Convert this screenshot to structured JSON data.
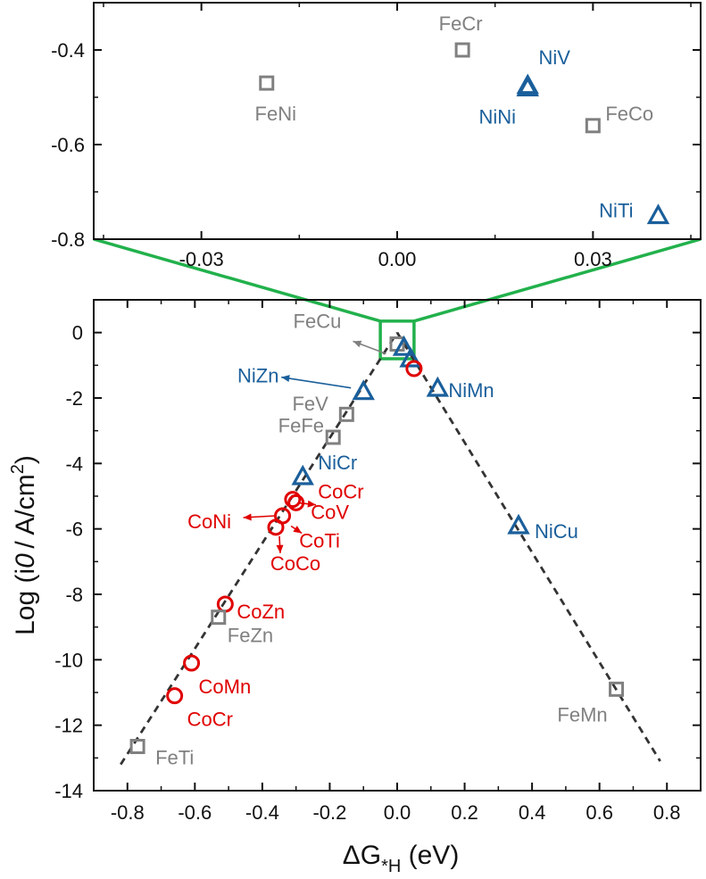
{
  "colors": {
    "fe": "#808080",
    "ni": "#1a5f9b",
    "co": "#e00000",
    "zoom": "#22b14c",
    "axis": "#111111",
    "trend": "#333333"
  },
  "chart_data": [
    {
      "type": "scatter",
      "role": "inset",
      "xlim": [
        -0.0465,
        0.0465
      ],
      "ylim": [
        -0.8,
        -0.3
      ],
      "xticks": [
        -0.03,
        0.0,
        0.03
      ],
      "xtick_labels": [
        "-0.03",
        "0.00",
        "0.03"
      ],
      "yticks": [
        -0.4,
        -0.6,
        -0.8
      ],
      "ytick_labels": [
        "-0.4",
        "-0.6",
        "-0.8"
      ],
      "points": [
        {
          "label": "FeCr",
          "x": 0.01,
          "y": -0.4,
          "series": "fe",
          "marker": "square",
          "ldx": -2,
          "ldy": -22,
          "anchor": "middle"
        },
        {
          "label": "FeNi",
          "x": -0.02,
          "y": -0.47,
          "series": "fe",
          "marker": "square",
          "ldx": 10,
          "ldy": 42,
          "anchor": "middle"
        },
        {
          "label": "NiV",
          "x": 0.02,
          "y": -0.475,
          "series": "ni",
          "marker": "triangle",
          "ldx": 30,
          "ldy": -24,
          "anchor": "middle"
        },
        {
          "label": "NiNi",
          "x": 0.02,
          "y": -0.48,
          "series": "ni",
          "marker": "triangle",
          "ldx": -34,
          "ldy": 40,
          "anchor": "middle"
        },
        {
          "label": "FeCo",
          "x": 0.03,
          "y": -0.56,
          "series": "fe",
          "marker": "square",
          "ldx": 14,
          "ldy": -6,
          "anchor": "start"
        },
        {
          "label": "NiTi",
          "x": 0.04,
          "y": -0.75,
          "series": "ni",
          "marker": "triangle",
          "ldx": -28,
          "ldy": 2,
          "anchor": "end"
        }
      ]
    },
    {
      "type": "scatter",
      "role": "main",
      "xlabel": "ΔG*H (eV)",
      "ylabel": "Log (i0 / A/cm2)",
      "xlim": [
        -0.9,
        0.9
      ],
      "ylim": [
        -14,
        1
      ],
      "xticks": [
        -0.8,
        -0.6,
        -0.4,
        -0.2,
        0.0,
        0.2,
        0.4,
        0.6,
        0.8
      ],
      "xtick_labels": [
        "-0.8",
        "-0.6",
        "-0.4",
        "-0.2",
        "0.0",
        "0.2",
        "0.4",
        "0.6",
        "0.8"
      ],
      "yticks": [
        0,
        -2,
        -4,
        -6,
        -8,
        -10,
        -12,
        -14
      ],
      "ytick_labels": [
        "0",
        "-2",
        "-4",
        "-6",
        "-8",
        "-10",
        "-12",
        "-14"
      ],
      "trend_lines": [
        {
          "x": [
            -0.82,
            0.0
          ],
          "y": [
            -13.2,
            0.0
          ]
        },
        {
          "x": [
            0.0,
            0.78
          ],
          "y": [
            0.0,
            -13.1
          ]
        }
      ],
      "zoom_box": {
        "x": [
          -0.05,
          0.05
        ],
        "y": [
          -0.8,
          0.35
        ]
      },
      "points": [
        {
          "label": "",
          "x": 0.0,
          "y": -0.35,
          "series": "fe",
          "marker": "square"
        },
        {
          "label": "",
          "x": 0.02,
          "y": -0.45,
          "series": "ni",
          "marker": "triangle"
        },
        {
          "label": "",
          "x": 0.04,
          "y": -0.8,
          "series": "ni",
          "marker": "triangle"
        },
        {
          "label": "",
          "x": 0.05,
          "y": -1.1,
          "series": "co",
          "marker": "circle"
        },
        {
          "label": "FeCu",
          "x": -0.02,
          "y": -0.4,
          "series": "fe",
          "marker": "none",
          "ldx": -82,
          "ldy": -20,
          "anchor": "middle",
          "arrow": true,
          "adx": -5,
          "ady": 9,
          "atx": -42,
          "aty": -5
        },
        {
          "label": "NiMn",
          "x": 0.12,
          "y": -1.7,
          "series": "ni",
          "marker": "triangle",
          "ldx": 12,
          "ldy": 10,
          "anchor": "start"
        },
        {
          "label": "NiZn",
          "x": -0.1,
          "y": -1.8,
          "series": "ni",
          "marker": "triangle",
          "ldx": -118,
          "ldy": -10,
          "anchor": "middle",
          "arrow": true,
          "adx": -14,
          "ady": -4,
          "atx": -92,
          "aty": -16
        },
        {
          "label": "FeV",
          "x": -0.12,
          "y": -2.0,
          "series": "fe",
          "marker": "none",
          "ldx": -52,
          "ldy": 14,
          "anchor": "middle"
        },
        {
          "label": "FeFe",
          "x": -0.15,
          "y": -2.5,
          "series": "fe",
          "marker": "square",
          "ldx": -51,
          "ldy": 20,
          "anchor": "middle"
        },
        {
          "label": "",
          "x": -0.19,
          "y": -3.2,
          "series": "fe",
          "marker": "square"
        },
        {
          "label": "NiCr",
          "x": -0.28,
          "y": -4.4,
          "series": "ni",
          "marker": "triangle",
          "ldx": 17,
          "ldy": -8,
          "anchor": "start"
        },
        {
          "label": "CoCr",
          "x": -0.31,
          "y": -5.1,
          "series": "co",
          "marker": "circle",
          "ldx": 54,
          "ldy": -1,
          "anchor": "middle",
          "arrow": true,
          "adx": 8,
          "ady": 4,
          "atx": 26,
          "aty": 6
        },
        {
          "label": "CoV",
          "x": -0.3,
          "y": -5.2,
          "series": "co",
          "marker": "circle",
          "ldx": 38,
          "ldy": 18,
          "anchor": "middle"
        },
        {
          "label": "CoNi",
          "x": -0.34,
          "y": -5.6,
          "series": "co",
          "marker": "circle",
          "ldx": -82,
          "ldy": 14,
          "anchor": "middle",
          "arrow": true,
          "adx": -8,
          "ady": 0,
          "atx": -44,
          "aty": 2
        },
        {
          "label": "CoTi",
          "x": -0.32,
          "y": -5.75,
          "series": "co",
          "marker": "none",
          "ldx": 34,
          "ldy": 30,
          "anchor": "middle",
          "arrow": true,
          "adx": 2,
          "ady": 6,
          "atx": 14,
          "aty": 14
        },
        {
          "label": "CoCo",
          "x": -0.36,
          "y": -5.95,
          "series": "co",
          "marker": "circle",
          "ldx": 22,
          "ldy": 48,
          "anchor": "middle",
          "arrow": true,
          "adx": 4,
          "ady": 10,
          "atx": 5,
          "aty": 29
        },
        {
          "label": "CoZn",
          "x": -0.51,
          "y": -8.3,
          "series": "co",
          "marker": "circle",
          "ldx": 13,
          "ldy": 16,
          "anchor": "start"
        },
        {
          "label": "FeZn",
          "x": -0.53,
          "y": -8.7,
          "series": "fe",
          "marker": "square",
          "ldx": 10,
          "ldy": 28,
          "anchor": "start"
        },
        {
          "label": "CoMn",
          "x": -0.61,
          "y": -10.1,
          "series": "co",
          "marker": "circle",
          "ldx": 8,
          "ldy": 34,
          "anchor": "start"
        },
        {
          "label": "CoCr",
          "x": -0.66,
          "y": -11.1,
          "series": "co",
          "marker": "circle",
          "ldx": 14,
          "ldy": 34,
          "anchor": "start"
        },
        {
          "label": "FeTi",
          "x": -0.77,
          "y": -12.65,
          "series": "fe",
          "marker": "square",
          "ldx": 20,
          "ldy": 20,
          "anchor": "start"
        },
        {
          "label": "NiCu",
          "x": 0.36,
          "y": -5.9,
          "series": "ni",
          "marker": "triangle",
          "ldx": 18,
          "ldy": 14,
          "anchor": "start"
        },
        {
          "label": "FeMn",
          "x": 0.65,
          "y": -10.9,
          "series": "fe",
          "marker": "square",
          "ldx": -38,
          "ldy": 36,
          "anchor": "middle"
        }
      ]
    }
  ]
}
